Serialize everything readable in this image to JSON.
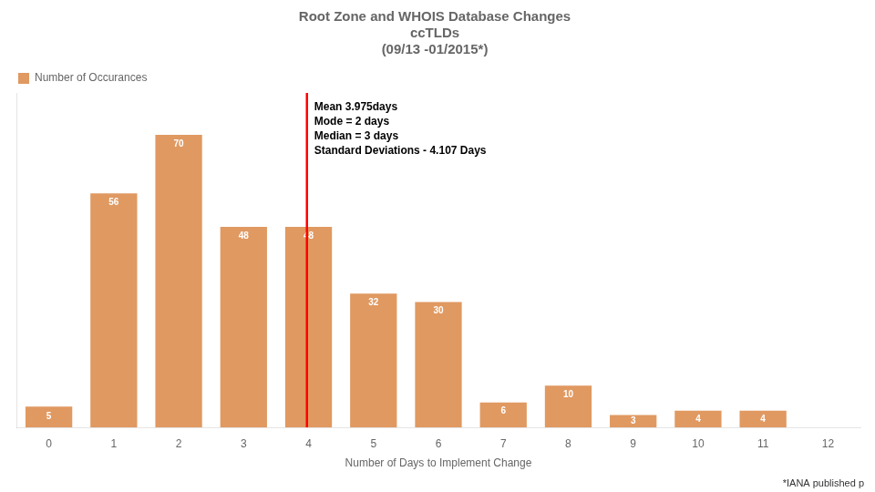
{
  "chart_data": {
    "type": "bar",
    "title": [
      "Root Zone and WHOIS Database Changes",
      "ccTLDs",
      "(09/13 -01/2015*)"
    ],
    "x": [
      0,
      1,
      2,
      3,
      4,
      5,
      6,
      7,
      8,
      9,
      10,
      11,
      12
    ],
    "series": [
      {
        "name": "Number of Occurances",
        "color": "#e09961",
        "values": [
          5,
          56,
          70,
          48,
          48,
          32,
          30,
          6,
          10,
          3,
          4,
          4,
          0
        ]
      }
    ],
    "xlabel": "Number of Days to Implement Change",
    "xlim": [
      -0.5,
      12.5
    ],
    "xticks": [
      0,
      1,
      2,
      3,
      4,
      5,
      6,
      7,
      8,
      9,
      10,
      11,
      12
    ],
    "ylim": [
      0,
      80
    ],
    "grid": false,
    "legend": "upper left",
    "data_labels": true,
    "tick_labels": "x",
    "reference_lines": [
      {
        "x": 3.975,
        "color": "#ff0000"
      }
    ],
    "annotation": "Mean 3.975days\nMode = 2 days\nMedian = 3 days\nStandard Deviations - 4.107 Days",
    "footnote": "*IANA published p"
  }
}
